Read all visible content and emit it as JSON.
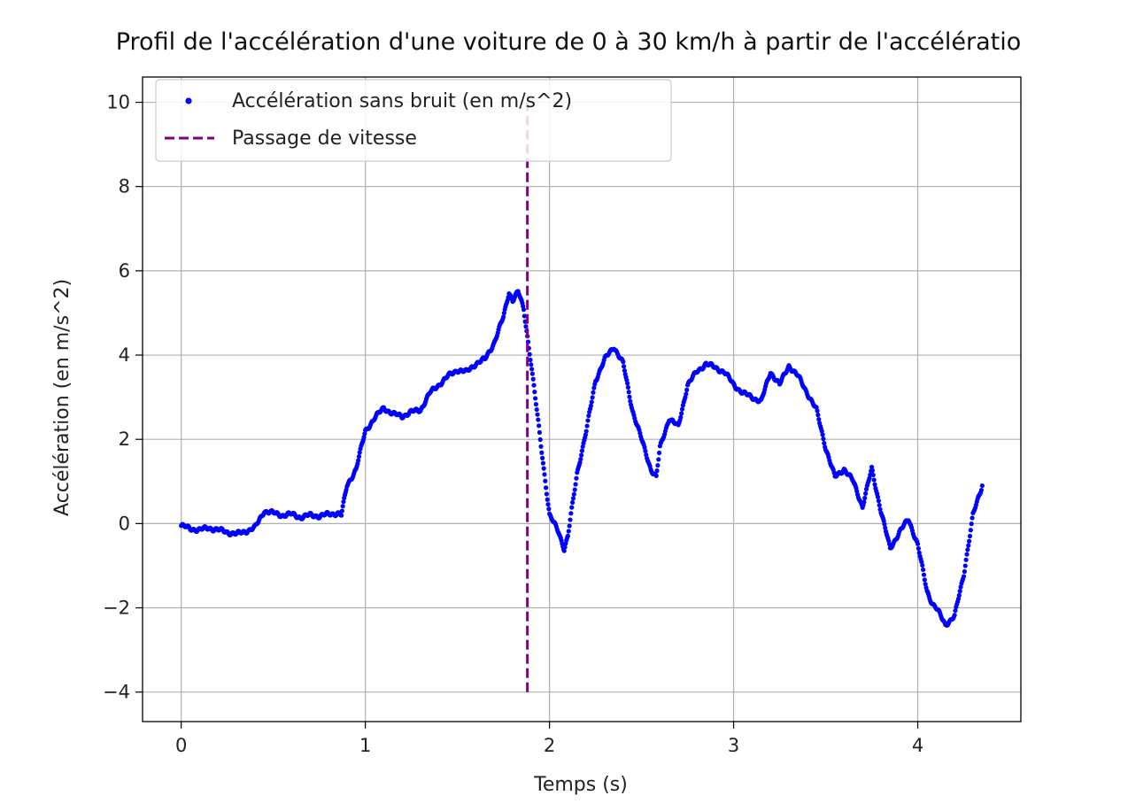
{
  "colors": {
    "series": "#0000ff",
    "marker_line": "#800080",
    "grid": "#b0b0b0",
    "axes": "#000000",
    "background": "#ffffff"
  },
  "chart_data": {
    "type": "scatter",
    "title": "Profil de l'accélération d'une voiture de 0 à 30 km/h à partir de l'accélératio",
    "xlabel": "Temps (s)",
    "ylabel": "Accélération (en m/s^2)",
    "xlim": [
      -0.21,
      4.56
    ],
    "ylim": [
      -4.7,
      10.6
    ],
    "xticks": [
      0,
      1,
      2,
      3,
      4
    ],
    "yticks": [
      -4,
      -2,
      0,
      2,
      4,
      6,
      8,
      10
    ],
    "xtick_labels": [
      "0",
      "1",
      "2",
      "3",
      "4"
    ],
    "ytick_labels": [
      "−4",
      "−2",
      "0",
      "2",
      "4",
      "6",
      "8",
      "10"
    ],
    "grid": true,
    "legend_position": "upper-left",
    "series": [
      {
        "name": "Accélération sans bruit (en m/s^2)",
        "style": "dots",
        "x": [
          0,
          0.05,
          0.1,
          0.15,
          0.2,
          0.25,
          0.3,
          0.35,
          0.4,
          0.42,
          0.45,
          0.5,
          0.55,
          0.6,
          0.65,
          0.7,
          0.75,
          0.8,
          0.85,
          0.87,
          0.9,
          0.95,
          1.0,
          1.05,
          1.1,
          1.15,
          1.2,
          1.25,
          1.3,
          1.35,
          1.4,
          1.45,
          1.5,
          1.55,
          1.6,
          1.65,
          1.7,
          1.75,
          1.78,
          1.8,
          1.83,
          1.86,
          1.9,
          1.95,
          2.0,
          2.05,
          2.08,
          2.1,
          2.15,
          2.2,
          2.25,
          2.3,
          2.35,
          2.4,
          2.45,
          2.5,
          2.55,
          2.58,
          2.6,
          2.65,
          2.7,
          2.75,
          2.8,
          2.85,
          2.9,
          2.95,
          3.0,
          3.05,
          3.1,
          3.15,
          3.2,
          3.25,
          3.3,
          3.35,
          3.4,
          3.45,
          3.5,
          3.55,
          3.6,
          3.65,
          3.7,
          3.75,
          3.8,
          3.85,
          3.9,
          3.95,
          4.0,
          4.05,
          4.08,
          4.1,
          4.15,
          4.2,
          4.25,
          4.3,
          4.35
        ],
        "y": [
          -0.05,
          -0.12,
          -0.15,
          -0.1,
          -0.15,
          -0.2,
          -0.25,
          -0.18,
          -0.1,
          0.05,
          0.3,
          0.25,
          0.2,
          0.22,
          0.15,
          0.2,
          0.18,
          0.22,
          0.25,
          0.2,
          0.9,
          1.3,
          2.2,
          2.5,
          2.75,
          2.6,
          2.55,
          2.65,
          2.7,
          3.1,
          3.3,
          3.5,
          3.65,
          3.6,
          3.8,
          3.9,
          4.3,
          4.9,
          5.5,
          5.3,
          5.5,
          5.1,
          3.8,
          2.0,
          0.2,
          -0.2,
          -0.6,
          -0.3,
          1.2,
          2.2,
          3.4,
          3.9,
          4.2,
          3.8,
          2.7,
          2.0,
          1.3,
          1.1,
          1.8,
          2.5,
          2.3,
          3.3,
          3.6,
          3.8,
          3.7,
          3.6,
          3.3,
          3.1,
          3.0,
          2.9,
          3.6,
          3.3,
          3.75,
          3.5,
          3.1,
          2.7,
          1.8,
          1.1,
          1.3,
          1.0,
          0.4,
          1.3,
          0.3,
          -0.6,
          -0.2,
          0.1,
          -0.5,
          -1.6,
          -1.9,
          -2.0,
          -2.4,
          -2.2,
          -1.2,
          0.2,
          0.9
        ]
      },
      {
        "name": "Passage de vitesse",
        "style": "dashed-vertical-line",
        "x": [
          1.88,
          1.88
        ],
        "y": [
          -4.0,
          10.0
        ]
      }
    ]
  }
}
